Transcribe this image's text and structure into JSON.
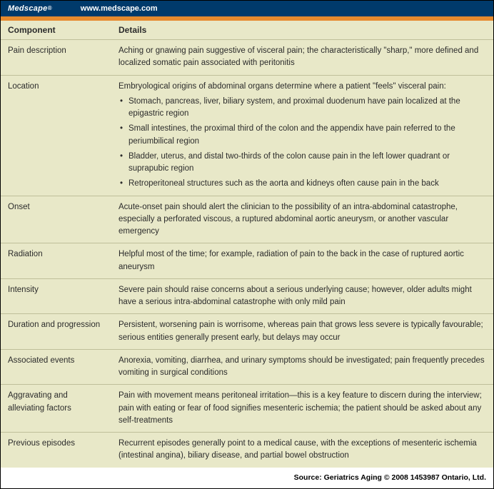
{
  "header": {
    "brand": "Medscape",
    "reg": "®",
    "url": "www.medscape.com"
  },
  "columns": {
    "c1": "Component",
    "c2": "Details"
  },
  "rows": [
    {
      "label": "Pain description",
      "text": "Aching or gnawing pain suggestive of visceral pain; the characteristically \"sharp,\" more defined and localized somatic pain associated with peritonitis"
    },
    {
      "label": "Location",
      "text": "Embryological origins of abdominal organs determine where a patient \"feels\" visceral pain:",
      "bullets": [
        "Stomach, pancreas, liver, biliary system, and proximal duodenum have pain localized at the epigastric region",
        "Small intestines, the proximal third of the colon and the appendix have pain referred to the periumbilical region",
        "Bladder, uterus, and distal two-thirds of the colon cause pain in the left lower quadrant or suprapubic region",
        "Retroperitoneal structures such as the aorta and kidneys often cause pain in the back"
      ]
    },
    {
      "label": "Onset",
      "text": "Acute-onset pain should alert the clinician to the possibility of an intra-abdominal catastrophe, especially a perforated viscous, a ruptured abdominal aortic aneurysm, or another vascular emergency"
    },
    {
      "label": "Radiation",
      "text": "Helpful most of the time; for example, radiation of pain to the back in the case of ruptured aortic aneurysm"
    },
    {
      "label": "Intensity",
      "text": "Severe pain should raise concerns about a serious underlying cause; however, older adults might have a serious intra-abdominal catastrophe with only mild pain"
    },
    {
      "label": "Duration and progression",
      "text": "Persistent, worsening pain is worrisome, whereas pain that grows less severe is typically favourable; serious entities generally present early, but delays may occur"
    },
    {
      "label": "Associated events",
      "text": "Anorexia, vomiting, diarrhea, and urinary symptoms should be investigated; pain frequently precedes vomiting in surgical conditions"
    },
    {
      "label": "Aggravating and alleviating factors",
      "text": "Pain with movement means peritoneal irritation—this is a key feature to discern during the interview; pain with eating or fear of food signifies mesenteric ischemia; the patient should be asked about any self-treatments"
    },
    {
      "label": "Previous episodes",
      "text": "Recurrent episodes generally point to a medical cause, with the exceptions of mesenteric ischemia (intestinal angina), biliary disease, and partial bowel obstruction"
    }
  ],
  "source": "Source: Geriatrics Aging © 2008 1453987 Ontario, Ltd."
}
